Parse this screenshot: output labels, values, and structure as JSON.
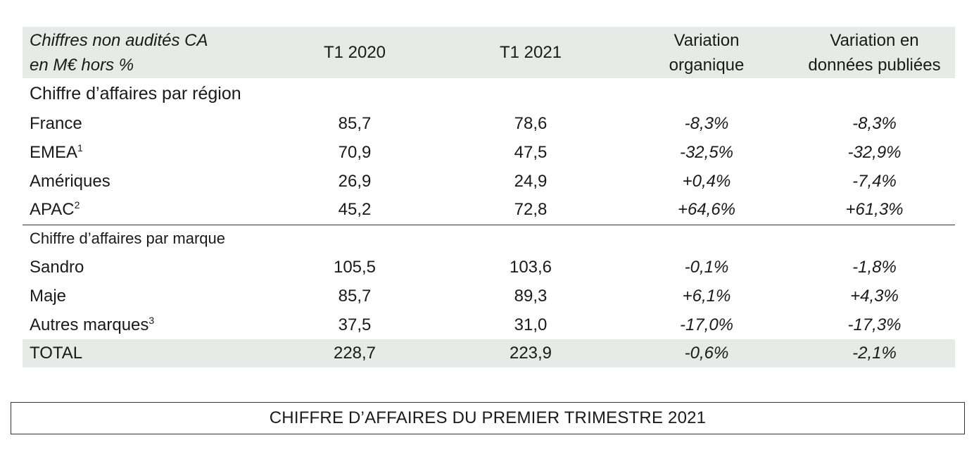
{
  "table": {
    "header": {
      "col0_line1": "Chiffres non audités CA",
      "col0_line2": "en M€ hors %",
      "col1": "T1 2020",
      "col2": "T1 2021",
      "col3_line1": "Variation",
      "col3_line2": "organique",
      "col4_line1": "Variation en",
      "col4_line2": "données publiées"
    },
    "section_region": "Chiffre d’affaires par région",
    "region_rows": [
      {
        "label": "France",
        "note": "",
        "t1_2020": "85,7",
        "t1_2021": "78,6",
        "var_org": "-8,3%",
        "var_pub": "-8,3%"
      },
      {
        "label": "EMEA",
        "note": "1",
        "t1_2020": "70,9",
        "t1_2021": "47,5",
        "var_org": "-32,5%",
        "var_pub": "-32,9%"
      },
      {
        "label": "Amériques",
        "note": "",
        "t1_2020": "26,9",
        "t1_2021": "24,9",
        "var_org": "+0,4%",
        "var_pub": "-7,4%"
      },
      {
        "label": "APAC",
        "note": "2",
        "t1_2020": "45,2",
        "t1_2021": "72,8",
        "var_org": "+64,6%",
        "var_pub": "+61,3%"
      }
    ],
    "section_brand": "Chiffre d’affaires par marque",
    "brand_rows": [
      {
        "label": "Sandro",
        "note": "",
        "t1_2020": "105,5",
        "t1_2021": "103,6",
        "var_org": "-0,1%",
        "var_pub": "-1,8%"
      },
      {
        "label": "Maje",
        "note": "",
        "t1_2020": "85,7",
        "t1_2021": "89,3",
        "var_org": "+6,1%",
        "var_pub": "+4,3%"
      },
      {
        "label": "Autres marques",
        "note": "3",
        "t1_2020": "37,5",
        "t1_2021": "31,0",
        "var_org": "-17,0%",
        "var_pub": "-17,3%"
      }
    ],
    "total": {
      "label": "TOTAL",
      "t1_2020": "228,7",
      "t1_2021": "223,9",
      "var_org": "-0,6%",
      "var_pub": "-2,1%"
    }
  },
  "footer_title": "CHIFFRE D’AFFAIRES DU PREMIER TRIMESTRE 2021",
  "colors": {
    "header_bg": "#e7ebe8",
    "total_bg": "#e7ebe8",
    "rule": "#333333"
  }
}
